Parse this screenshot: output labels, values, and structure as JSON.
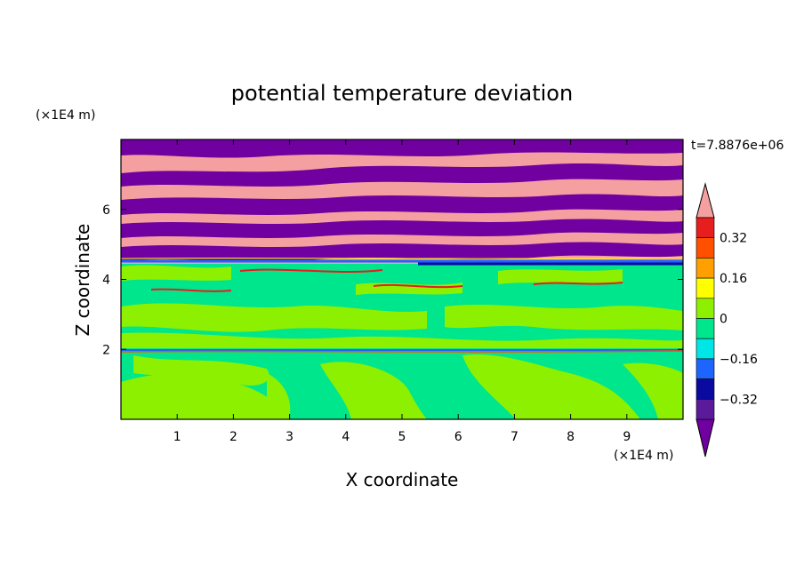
{
  "chart_data": {
    "type": "heatmap",
    "title": "potential temperature deviation",
    "xlabel": "X coordinate",
    "ylabel": "Z coordinate",
    "x_unit": "(×1E4 m)",
    "y_unit": "(×1E4 m)",
    "time_label": "t=7.8876e+06",
    "xlim": [
      0,
      10
    ],
    "ylim": [
      0,
      8
    ],
    "x_ticks": [
      "1",
      "2",
      "3",
      "4",
      "5",
      "6",
      "7",
      "8",
      "9"
    ],
    "y_ticks": [
      "2",
      "4",
      "6"
    ],
    "colorbar": {
      "tick_labels": [
        "0.32",
        "0.16",
        "0",
        "−0.16",
        "−0.32"
      ],
      "levels": [
        -0.4,
        -0.32,
        -0.24,
        -0.16,
        -0.08,
        0,
        0.08,
        0.16,
        0.24,
        0.32,
        0.4
      ],
      "colors": [
        "#5a1a9a",
        "#0a0aa0",
        "#1e64ff",
        "#00e6e6",
        "#00e68c",
        "#8cf000",
        "#ffff00",
        "#ffa000",
        "#ff5000",
        "#e61e1e"
      ],
      "over_color": "#f5a0a0",
      "under_color": "#7000a0"
    },
    "regions": [
      {
        "layer": "upper 4.5–8",
        "dominant_values": "alternating > 0.4 (pink) and < -0.4 (purple) bands"
      },
      {
        "layer": "middle 2–4.5",
        "dominant_values": "about -0.08 to 0 (teal) with patches 0 to 0.08 (green)"
      },
      {
        "layer": "lower 0–2",
        "dominant_values": "mixed 0 to 0.08 (green) and -0.08 to 0 (teal)"
      }
    ]
  }
}
